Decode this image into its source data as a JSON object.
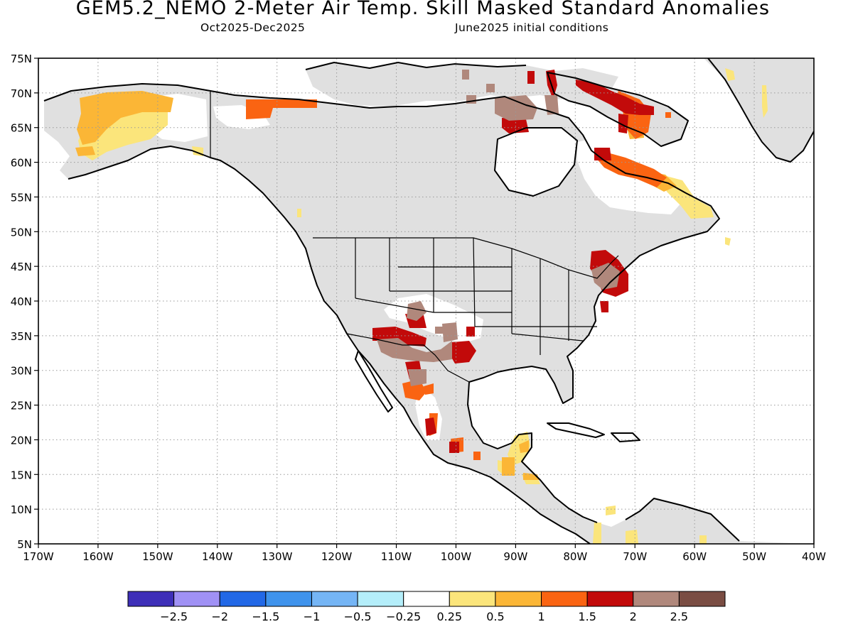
{
  "title": "GEM5.2_NEMO 2-Meter Air Temp. Skill Masked Standard Anomalies",
  "subtitle_left": "Oct2025-Dec2025",
  "subtitle_right": "June2025 initial conditions",
  "map": {
    "lon_range": [
      -170,
      -40
    ],
    "lat_range": [
      5,
      75
    ],
    "lat_labels": [
      "75N",
      "70N",
      "65N",
      "60N",
      "55N",
      "50N",
      "45N",
      "40N",
      "35N",
      "30N",
      "25N",
      "20N",
      "15N",
      "10N",
      "5N"
    ],
    "lon_labels": [
      "170W",
      "160W",
      "150W",
      "140W",
      "130W",
      "120W",
      "110W",
      "100W",
      "90W",
      "80W",
      "70W",
      "60W",
      "50W",
      "40W"
    ],
    "colors": {
      "land_masked": "#e0e0e0",
      "grid": "#999999",
      "coast": "#000000"
    }
  },
  "colorbar": {
    "colors": [
      "#3e2fb8",
      "#a091f5",
      "#2268e6",
      "#3f93ec",
      "#75b5f5",
      "#b4eefa",
      "#ffffff",
      "#fbe57b",
      "#fbb636",
      "#fa6412",
      "#c20a0a",
      "#b0887c",
      "#7a4d43"
    ],
    "labels": [
      "-2.5",
      "-2",
      "-1.5",
      "-1",
      "-0.5",
      "-0.25",
      "0.25",
      "0.5",
      "1",
      "1.5",
      "2",
      "2.5"
    ]
  }
}
